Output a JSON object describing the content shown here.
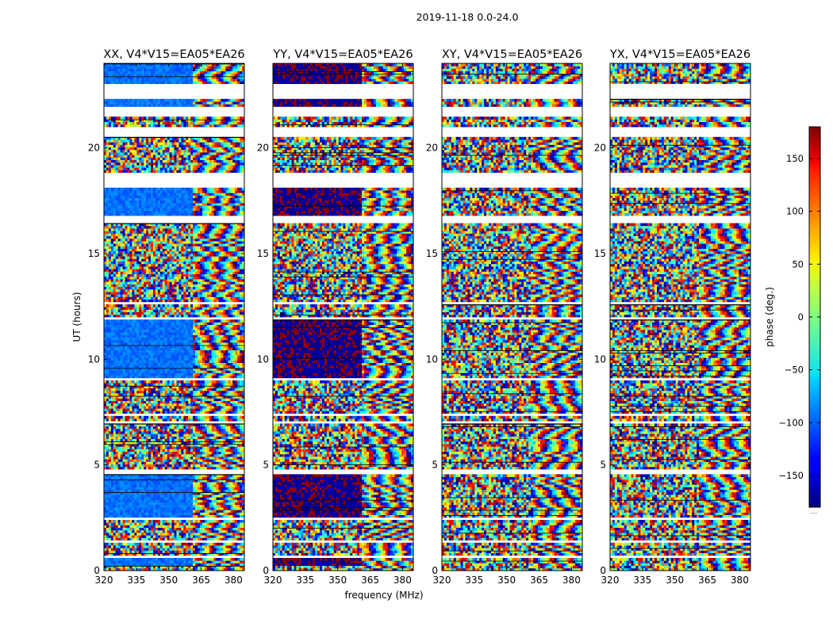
{
  "figure": {
    "suptitle": "2019-11-18 0.0-24.0",
    "xlabel": "frequency (MHz)",
    "ylabel": "UT (hours)"
  },
  "chart_data": {
    "type": "heatmap",
    "xlim": [
      320,
      385
    ],
    "ylim": [
      0,
      24
    ],
    "xticks": [
      320,
      335,
      350,
      365,
      380
    ],
    "yticks": [
      0,
      5,
      10,
      15,
      20
    ],
    "panels": [
      {
        "name": "xx",
        "title": "XX, V4*V15=EA05*EA26",
        "base_phase": -100,
        "coherent": true,
        "block_phase": -95
      },
      {
        "name": "yy",
        "title": "YY, V4*V15=EA05*EA26",
        "base_phase": 180,
        "coherent": true,
        "block_phase": -175
      },
      {
        "name": "xy",
        "title": "XY, V4*V15=EA05*EA26",
        "base_phase": 0,
        "coherent": false,
        "block_phase": 0
      },
      {
        "name": "yx",
        "title": "YX, V4*V15=EA05*EA26",
        "base_phase": 0,
        "coherent": false,
        "block_phase": 0
      }
    ],
    "data_gaps_hours": [
      [
        0.55,
        0.75
      ],
      [
        1.35,
        1.5
      ],
      [
        2.4,
        2.5
      ],
      [
        4.6,
        4.75
      ],
      [
        6.9,
        7.1
      ],
      [
        7.3,
        7.5
      ],
      [
        9.0,
        9.1
      ],
      [
        11.9,
        12.0
      ],
      [
        12.6,
        12.75
      ],
      [
        16.4,
        16.75
      ],
      [
        18.1,
        18.9
      ],
      [
        20.5,
        21.0
      ],
      [
        21.5,
        22.0
      ],
      [
        22.3,
        23.0
      ]
    ],
    "colorbar": {
      "label": "phase (deg.)",
      "min": -180,
      "max": 180,
      "ticks": [
        -150,
        -100,
        -50,
        0,
        50,
        100,
        150
      ],
      "colormap": "jet",
      "underflow_marker": "....."
    }
  }
}
